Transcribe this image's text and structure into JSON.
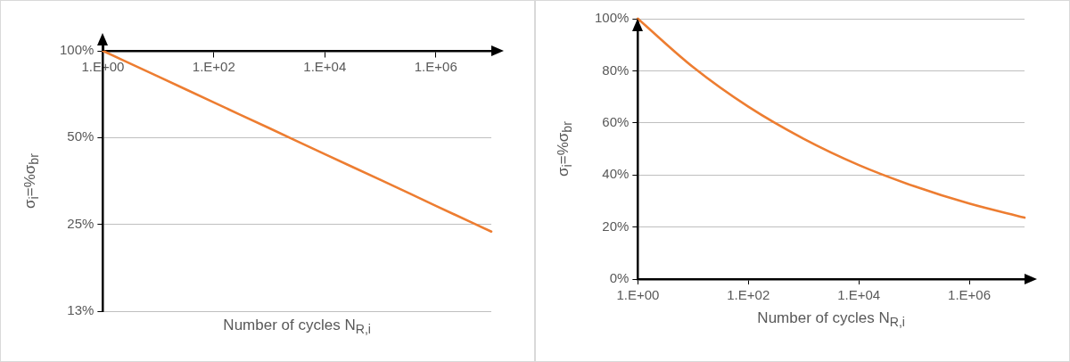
{
  "chart_data": [
    {
      "type": "line",
      "xlabel": "Number of cycles N$_{R,i}$",
      "ylabel": "σ$_{i}$=%σ$_{br}$",
      "log": "y",
      "grid": "y",
      "marker": "none",
      "categories": [
        "1.E+00",
        null,
        "1.E+02",
        null,
        "1.E+04",
        null,
        "1.E+06",
        null
      ],
      "series": [
        {
          "color": "#ed7d31",
          "values": [
            100,
            81.4,
            66.2,
            53.9,
            43.8,
            35.7,
            29.0,
            23.6
          ]
        }
      ],
      "ylim": [
        12.5,
        100
      ],
      "yticks": [
        {
          "value": 12.5,
          "label": "13%"
        },
        {
          "value": 25,
          "label": "25%"
        },
        {
          "value": 50,
          "label": "50%"
        },
        {
          "value": 100,
          "label": "100%"
        }
      ]
    },
    {
      "type": "line",
      "xlabel": "Number of cycles N$_{R,i}$",
      "ylabel": "σ$_{i}$=%σ$_{br}$",
      "grid": "y",
      "marker": "none",
      "categories": [
        "1.E+00",
        null,
        "1.E+02",
        null,
        "1.E+04",
        null,
        "1.E+06",
        null
      ],
      "series": [
        {
          "color": "#ed7d31",
          "values": [
            100,
            81.4,
            66.2,
            53.9,
            43.8,
            35.7,
            29.0,
            23.6
          ]
        }
      ],
      "ylim": [
        0,
        100
      ],
      "yticks": [
        {
          "value": 0,
          "label": "0%"
        },
        {
          "value": 20,
          "label": "20%"
        },
        {
          "value": 40,
          "label": "40%"
        },
        {
          "value": 60,
          "label": "60%"
        },
        {
          "value": 80,
          "label": "80%"
        },
        {
          "value": 100,
          "label": "100%"
        }
      ]
    }
  ]
}
